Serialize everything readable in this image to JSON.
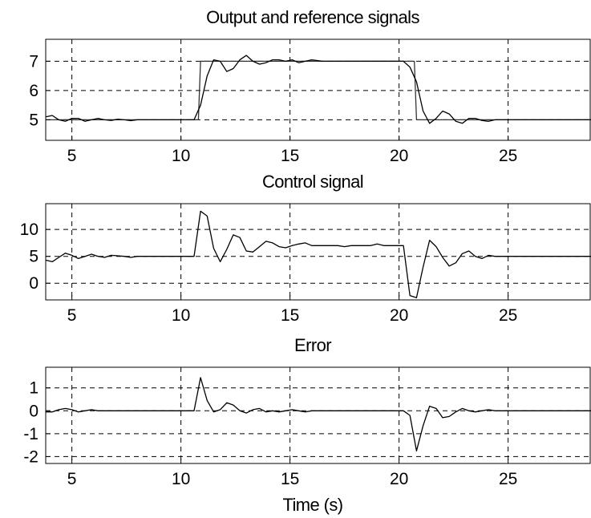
{
  "chart_data": [
    {
      "type": "line",
      "title": "Output and reference signals",
      "xlabel": "",
      "ylabel": "",
      "xlim": [
        3.8,
        28.8
      ],
      "ylim": [
        4.3,
        7.75
      ],
      "grid": true,
      "xticks": [
        5,
        10,
        15,
        20,
        25
      ],
      "yticks": [
        5,
        6,
        7
      ],
      "series": [
        {
          "color": "#333333",
          "x": [
            3.8,
            10.8,
            10.9,
            20.7,
            20.8,
            28.8
          ],
          "y": [
            5,
            5,
            7,
            7,
            5,
            5
          ]
        },
        {
          "color": "#000000",
          "x": [
            3.8,
            4.1,
            4.4,
            4.7,
            5.0,
            5.3,
            5.6,
            5.9,
            6.2,
            6.5,
            6.8,
            7.1,
            7.4,
            7.7,
            8.0,
            10.3,
            10.6,
            10.9,
            11.2,
            11.5,
            11.8,
            12.1,
            12.4,
            12.7,
            13.0,
            13.3,
            13.6,
            13.9,
            14.2,
            14.5,
            14.8,
            15.1,
            15.4,
            15.7,
            16.0,
            16.5,
            17.0,
            20.2,
            20.5,
            20.8,
            21.1,
            21.4,
            21.7,
            22.0,
            22.3,
            22.6,
            22.9,
            23.2,
            23.5,
            23.8,
            24.1,
            24.4,
            28.8
          ],
          "y": [
            5.1,
            5.15,
            5.0,
            4.95,
            5.05,
            5.05,
            4.95,
            5.0,
            5.05,
            5.0,
            4.98,
            5.02,
            5.0,
            4.97,
            5.0,
            5.0,
            5.0,
            5.5,
            6.5,
            7.05,
            7.0,
            6.65,
            6.75,
            7.05,
            7.2,
            7.0,
            6.9,
            6.95,
            7.05,
            7.05,
            7.0,
            7.05,
            6.95,
            7.0,
            7.05,
            7.0,
            7.0,
            7.0,
            6.8,
            6.3,
            5.3,
            4.88,
            5.05,
            5.3,
            5.2,
            4.95,
            4.88,
            5.05,
            5.05,
            4.98,
            4.95,
            5.0,
            5.0
          ]
        }
      ]
    },
    {
      "type": "line",
      "title": "Control signal",
      "xlabel": "",
      "ylabel": "",
      "xlim": [
        3.8,
        28.8
      ],
      "ylim": [
        -3.1,
        14.8
      ],
      "grid": true,
      "xticks": [
        5,
        10,
        15,
        20,
        25
      ],
      "yticks": [
        0,
        5,
        10
      ],
      "series": [
        {
          "color": "#000000",
          "x": [
            3.8,
            4.1,
            4.4,
            4.7,
            5.0,
            5.3,
            5.6,
            5.9,
            6.2,
            6.5,
            6.8,
            7.1,
            7.4,
            7.7,
            8.0,
            10.3,
            10.6,
            10.9,
            11.2,
            11.5,
            11.8,
            12.1,
            12.4,
            12.7,
            13.0,
            13.3,
            13.6,
            13.9,
            14.2,
            14.5,
            14.8,
            15.1,
            15.4,
            15.7,
            16.0,
            16.3,
            16.6,
            16.9,
            17.2,
            17.5,
            17.8,
            18.1,
            18.4,
            18.7,
            19.0,
            19.3,
            19.6,
            19.9,
            20.2,
            20.5,
            20.8,
            21.1,
            21.4,
            21.7,
            22.0,
            22.3,
            22.6,
            22.9,
            23.2,
            23.5,
            23.8,
            24.1,
            24.4,
            28.8
          ],
          "y": [
            4.3,
            4.0,
            4.8,
            5.6,
            5.2,
            4.6,
            5.0,
            5.4,
            5.0,
            4.8,
            5.2,
            5.1,
            5.0,
            4.8,
            5.0,
            5.0,
            5.0,
            13.4,
            12.5,
            6.5,
            4.0,
            6.3,
            9.0,
            8.5,
            6.0,
            5.8,
            6.8,
            7.8,
            7.5,
            6.8,
            6.6,
            7.0,
            7.3,
            7.5,
            7.0,
            7.0,
            7.0,
            7.0,
            7.0,
            6.8,
            7.0,
            7.0,
            7.0,
            7.0,
            7.3,
            7.0,
            7.0,
            7.0,
            7.0,
            -2.3,
            -2.7,
            3.0,
            8.0,
            6.8,
            4.8,
            3.2,
            3.8,
            5.5,
            6.0,
            5.0,
            4.6,
            5.2,
            5.0,
            5.0
          ]
        }
      ]
    },
    {
      "type": "line",
      "title": "Error",
      "xlabel": "Time (s)",
      "ylabel": "",
      "xlim": [
        3.8,
        28.8
      ],
      "ylim": [
        -2.3,
        1.9
      ],
      "grid": true,
      "xticks": [
        5,
        10,
        15,
        20,
        25
      ],
      "yticks": [
        -2,
        -1,
        0,
        1
      ],
      "series": [
        {
          "color": "#000000",
          "x": [
            3.8,
            4.1,
            4.4,
            4.7,
            5.0,
            5.3,
            5.6,
            5.9,
            6.2,
            6.5,
            10.3,
            10.6,
            10.9,
            11.2,
            11.5,
            11.8,
            12.1,
            12.4,
            12.7,
            13.0,
            13.3,
            13.6,
            13.9,
            14.2,
            14.5,
            14.8,
            15.1,
            15.4,
            15.7,
            16.0,
            20.2,
            20.5,
            20.8,
            21.1,
            21.4,
            21.7,
            22.0,
            22.3,
            22.6,
            22.9,
            23.2,
            23.5,
            23.8,
            24.1,
            24.4,
            28.8
          ],
          "y": [
            -0.05,
            -0.05,
            0.05,
            0.1,
            0.05,
            -0.05,
            0.0,
            0.05,
            0.0,
            0.0,
            0.0,
            0.0,
            1.45,
            0.45,
            -0.05,
            0.05,
            0.35,
            0.25,
            0.0,
            -0.1,
            0.05,
            0.1,
            -0.05,
            0.0,
            -0.05,
            0.0,
            0.05,
            0.0,
            -0.05,
            0.0,
            0.0,
            -0.2,
            -1.75,
            -0.65,
            0.2,
            0.1,
            -0.3,
            -0.25,
            -0.05,
            0.1,
            0.0,
            -0.05,
            0.0,
            0.05,
            0.0,
            0.0
          ]
        }
      ]
    }
  ]
}
